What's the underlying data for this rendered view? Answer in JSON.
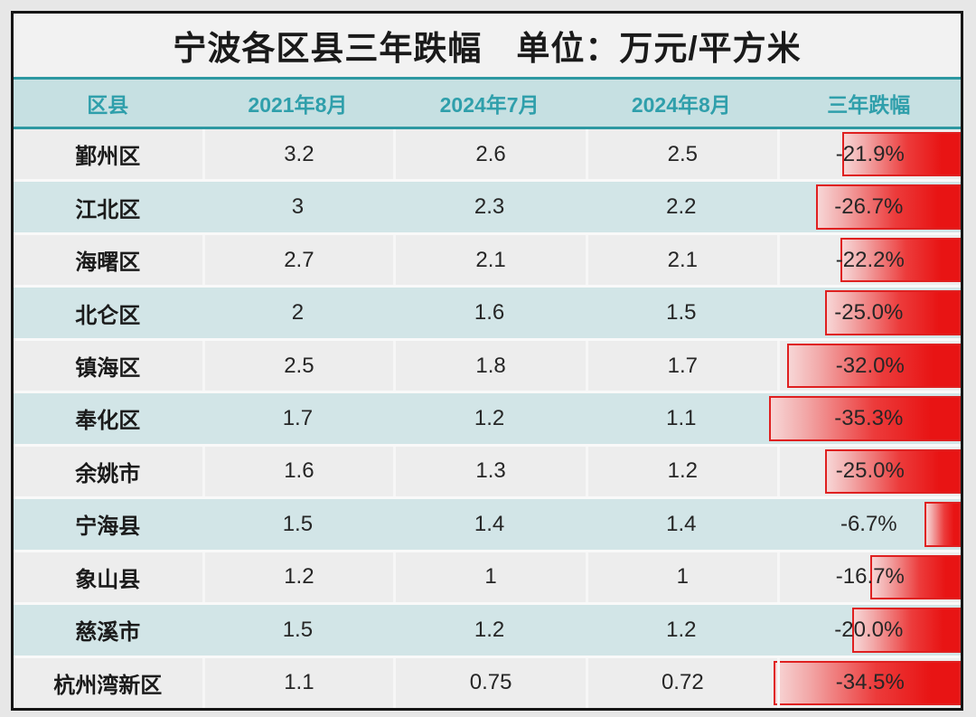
{
  "title": "宁波各区县三年跌幅　单位：万元/平方米",
  "table": {
    "columns": [
      "区县",
      "2021年8月",
      "2024年7月",
      "2024年8月",
      "三年跌幅"
    ],
    "rows": [
      {
        "district": "鄞州区",
        "aug2021": "3.2",
        "jul2024": "2.6",
        "aug2024": "2.5",
        "drop": "-21.9%",
        "drop_pct": 21.9
      },
      {
        "district": "江北区",
        "aug2021": "3",
        "jul2024": "2.3",
        "aug2024": "2.2",
        "drop": "-26.7%",
        "drop_pct": 26.7
      },
      {
        "district": "海曙区",
        "aug2021": "2.7",
        "jul2024": "2.1",
        "aug2024": "2.1",
        "drop": "-22.2%",
        "drop_pct": 22.2
      },
      {
        "district": "北仑区",
        "aug2021": "2",
        "jul2024": "1.6",
        "aug2024": "1.5",
        "drop": "-25.0%",
        "drop_pct": 25.0
      },
      {
        "district": "镇海区",
        "aug2021": "2.5",
        "jul2024": "1.8",
        "aug2024": "1.7",
        "drop": "-32.0%",
        "drop_pct": 32.0
      },
      {
        "district": "奉化区",
        "aug2021": "1.7",
        "jul2024": "1.2",
        "aug2024": "1.1",
        "drop": "-35.3%",
        "drop_pct": 35.3
      },
      {
        "district": "余姚市",
        "aug2021": "1.6",
        "jul2024": "1.3",
        "aug2024": "1.2",
        "drop": "-25.0%",
        "drop_pct": 25.0
      },
      {
        "district": "宁海县",
        "aug2021": "1.5",
        "jul2024": "1.4",
        "aug2024": "1.4",
        "drop": "-6.7%",
        "drop_pct": 6.7
      },
      {
        "district": "象山县",
        "aug2021": "1.2",
        "jul2024": "1",
        "aug2024": "1",
        "drop": "-16.7%",
        "drop_pct": 16.7
      },
      {
        "district": "慈溪市",
        "aug2021": "1.5",
        "jul2024": "1.2",
        "aug2024": "1.2",
        "drop": "-20.0%",
        "drop_pct": 20.0
      },
      {
        "district": "杭州湾新区",
        "aug2021": "1.1",
        "jul2024": "0.75",
        "aug2024": "0.72",
        "drop": "-34.5%",
        "drop_pct": 34.5
      }
    ]
  },
  "colors": {
    "page_background": "#e7e7e7",
    "frame_border": "#161616",
    "title_background": "#f2f2f2",
    "header_background": "#c6e0e2",
    "header_text": "#2f9fab",
    "header_border": "#2d98a2",
    "row_gray": "#ededed",
    "row_teal": "#d2e5e7",
    "bar_border": "#df2020",
    "bar_gradient_start": "#f7d6d6",
    "bar_gradient_end": "#e81414",
    "cell_text": "#262626"
  },
  "chart_data": {
    "type": "table",
    "title": "宁波各区县三年跌幅　单位：万元/平方米",
    "unit": "万元/平方米",
    "columns": [
      "区县",
      "2021年8月",
      "2024年7月",
      "2024年8月",
      "三年跌幅"
    ],
    "rows": [
      [
        "鄞州区",
        3.2,
        2.6,
        2.5,
        -21.9
      ],
      [
        "江北区",
        3,
        2.3,
        2.2,
        -26.7
      ],
      [
        "海曙区",
        2.7,
        2.1,
        2.1,
        -22.2
      ],
      [
        "北仑区",
        2,
        1.6,
        1.5,
        -25.0
      ],
      [
        "镇海区",
        2.5,
        1.8,
        1.7,
        -32.0
      ],
      [
        "奉化区",
        1.7,
        1.2,
        1.1,
        -35.3
      ],
      [
        "余姚市",
        1.6,
        1.3,
        1.2,
        -25.0
      ],
      [
        "宁海县",
        1.5,
        1.4,
        1.4,
        -6.7
      ],
      [
        "象山县",
        1.2,
        1,
        1,
        -16.7
      ],
      [
        "慈溪市",
        1.5,
        1.2,
        1.2,
        -20.0
      ],
      [
        "杭州湾新区",
        1.1,
        0.75,
        0.72,
        -34.5
      ]
    ],
    "bar_overlay": {
      "column": "三年跌幅",
      "type": "bar",
      "orientation": "horizontal",
      "alignment": "right-edge-of-table",
      "values": [
        -21.9,
        -26.7,
        -22.2,
        -25.0,
        -32.0,
        -35.3,
        -25.0,
        -6.7,
        -16.7,
        -20.0,
        -34.5
      ],
      "note": "bar width proportional to absolute drop percent, red gradient fill"
    },
    "legend_position": "none",
    "grid": false
  }
}
